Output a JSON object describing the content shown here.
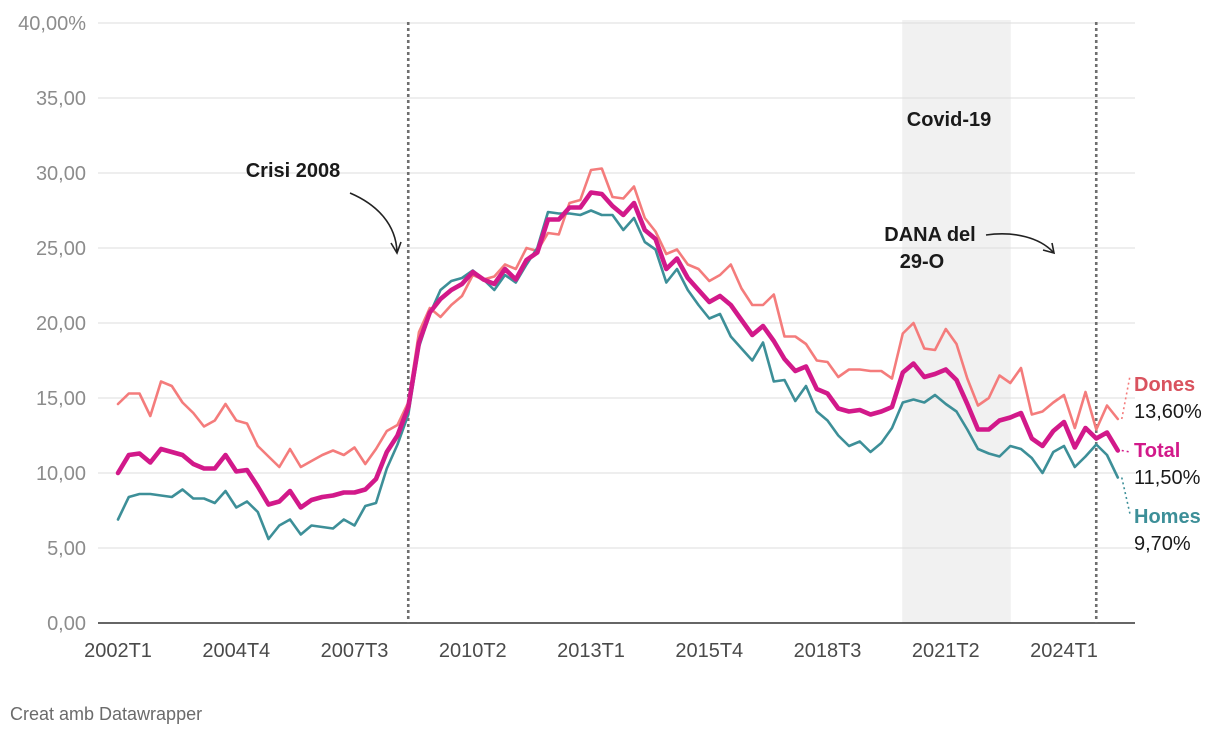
{
  "chart_data": {
    "type": "line",
    "ylim": [
      0,
      40
    ],
    "y_ticks": [
      "0,00",
      "5,00",
      "10,00",
      "15,00",
      "20,00",
      "25,00",
      "30,00",
      "35,00",
      "40,00%"
    ],
    "y_tick_values": [
      0,
      5,
      10,
      15,
      20,
      25,
      30,
      35,
      40
    ],
    "x_tick_labels": [
      "2002T1",
      "2004T4",
      "2007T3",
      "2010T2",
      "2013T1",
      "2015T4",
      "2018T3",
      "2021T2",
      "2024T1"
    ],
    "x_tick_index": [
      0,
      11,
      22,
      33,
      44,
      55,
      66,
      77,
      88
    ],
    "x_start": "2002T1",
    "grid": true,
    "series": [
      {
        "name": "Dones",
        "color": "#f47c7c",
        "label_color": "#d9535f",
        "end_label": "13,60%",
        "values": [
          14.6,
          15.3,
          15.3,
          13.8,
          16.1,
          15.8,
          14.7,
          14.0,
          13.1,
          13.5,
          14.6,
          13.5,
          13.3,
          11.8,
          11.1,
          10.4,
          11.6,
          10.4,
          10.8,
          11.2,
          11.5,
          11.2,
          11.7,
          10.6,
          11.6,
          12.8,
          13.2,
          14.7,
          19.4,
          21.0,
          20.4,
          21.2,
          21.8,
          23.2,
          22.9,
          23.1,
          23.9,
          23.6,
          25.0,
          24.8,
          26.0,
          25.9,
          28.0,
          28.2,
          30.2,
          30.3,
          28.4,
          28.3,
          29.1,
          27.0,
          26.1,
          24.6,
          24.9,
          23.9,
          23.6,
          22.8,
          23.2,
          23.9,
          22.3,
          21.2,
          21.2,
          21.9,
          19.1,
          19.1,
          18.6,
          17.5,
          17.4,
          16.4,
          16.9,
          16.9,
          16.8,
          16.8,
          16.3,
          19.3,
          20.0,
          18.3,
          18.2,
          19.6,
          18.6,
          16.3,
          14.5,
          15.0,
          16.5,
          16.0,
          17.0,
          13.9,
          14.1,
          14.7,
          15.2,
          13.0,
          15.4,
          12.9,
          14.5,
          13.6
        ]
      },
      {
        "name": "Total",
        "color": "#d2198a",
        "label_color": "#d2198a",
        "end_label": "11,50%",
        "values": [
          10.0,
          11.2,
          11.3,
          10.7,
          11.6,
          11.4,
          11.2,
          10.6,
          10.3,
          10.3,
          11.2,
          10.1,
          10.2,
          9.1,
          7.9,
          8.1,
          8.8,
          7.7,
          8.2,
          8.4,
          8.5,
          8.7,
          8.7,
          8.9,
          9.6,
          11.4,
          12.5,
          14.4,
          18.7,
          20.7,
          21.6,
          22.2,
          22.6,
          23.4,
          22.9,
          22.6,
          23.6,
          22.9,
          24.2,
          24.7,
          26.9,
          26.9,
          27.7,
          27.7,
          28.7,
          28.6,
          27.8,
          27.2,
          28.0,
          26.2,
          25.6,
          23.6,
          24.3,
          23.0,
          22.2,
          21.4,
          21.8,
          21.2,
          20.2,
          19.2,
          19.8,
          18.8,
          17.6,
          16.8,
          17.1,
          15.6,
          15.3,
          14.3,
          14.1,
          14.2,
          13.9,
          14.1,
          14.4,
          16.7,
          17.3,
          16.4,
          16.6,
          16.9,
          16.2,
          14.6,
          12.9,
          12.9,
          13.5,
          13.7,
          14.0,
          12.3,
          11.8,
          12.8,
          13.4,
          11.7,
          13.0,
          12.3,
          12.7,
          11.5
        ]
      },
      {
        "name": "Homes",
        "color": "#3d8f98",
        "label_color": "#3d8f98",
        "end_label": "9,70%",
        "values": [
          6.9,
          8.4,
          8.6,
          8.6,
          8.5,
          8.4,
          8.9,
          8.3,
          8.3,
          8.0,
          8.8,
          7.7,
          8.1,
          7.4,
          5.6,
          6.5,
          6.9,
          5.9,
          6.5,
          6.4,
          6.3,
          6.9,
          6.5,
          7.8,
          8.0,
          10.3,
          11.9,
          13.9,
          18.4,
          20.6,
          22.2,
          22.8,
          23.0,
          23.5,
          22.9,
          22.2,
          23.2,
          22.7,
          23.9,
          25.0,
          27.4,
          27.3,
          27.3,
          27.2,
          27.5,
          27.2,
          27.2,
          26.2,
          27.0,
          25.4,
          24.9,
          22.7,
          23.6,
          22.2,
          21.2,
          20.3,
          20.6,
          19.1,
          18.3,
          17.5,
          18.7,
          16.1,
          16.2,
          14.8,
          15.8,
          14.1,
          13.5,
          12.5,
          11.8,
          12.1,
          11.4,
          12.0,
          13.0,
          14.7,
          14.9,
          14.7,
          15.2,
          14.6,
          14.1,
          12.9,
          11.6,
          11.3,
          11.1,
          11.8,
          11.6,
          11.0,
          10.0,
          11.4,
          11.8,
          10.4,
          11.1,
          11.9,
          11.2,
          9.7
        ]
      }
    ],
    "annotations": {
      "crisi": {
        "text": "Crisi 2008",
        "at": "2008T4"
      },
      "covid": {
        "text": "Covid-19",
        "from": "2020T2",
        "to": "2022T4"
      },
      "dana_line1": "DANA del",
      "dana_line2": "29-O",
      "dana_at": "2024T4"
    }
  },
  "footer": {
    "credit": "Creat amb Datawrapper"
  }
}
